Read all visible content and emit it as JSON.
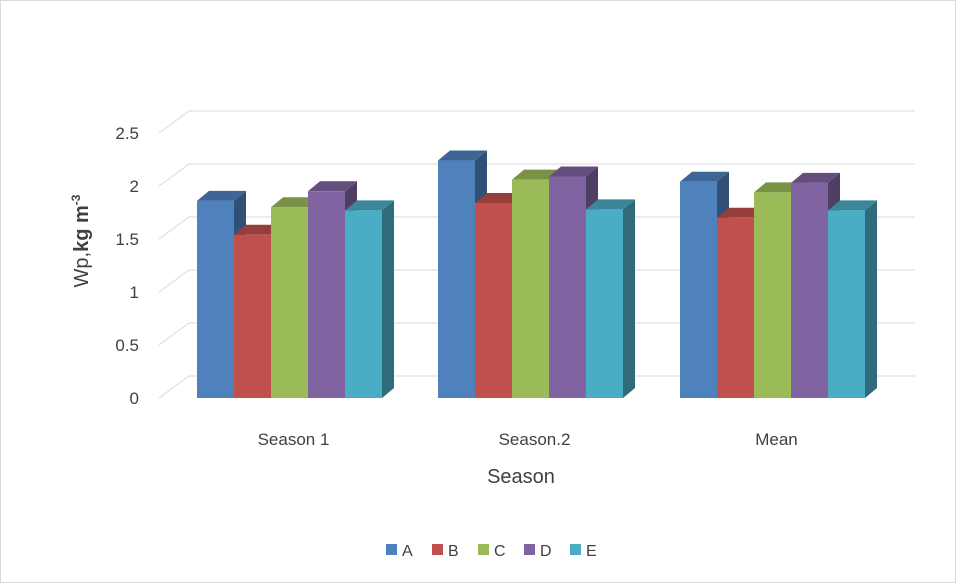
{
  "chart_data": {
    "type": "bar",
    "style": "3d-clustered-column",
    "categories": [
      "Season 1",
      "Season.2",
      "Mean"
    ],
    "series": [
      {
        "name": "A",
        "color": "#4F81BD",
        "values": [
          1.86,
          2.24,
          2.04
        ]
      },
      {
        "name": "B",
        "color": "#C0504D",
        "values": [
          1.54,
          1.84,
          1.7
        ]
      },
      {
        "name": "C",
        "color": "#9BBB59",
        "values": [
          1.8,
          2.06,
          1.94
        ]
      },
      {
        "name": "D",
        "color": "#8064A2",
        "values": [
          1.95,
          2.09,
          2.03
        ]
      },
      {
        "name": "E",
        "color": "#4BACC6",
        "values": [
          1.77,
          1.78,
          1.77
        ]
      }
    ],
    "xlabel": "Season",
    "ylabel_main": "Wp,",
    "ylabel_unit": "kg m",
    "ylabel_sup": "-3",
    "ylim": [
      0,
      2.5
    ],
    "yticks": [
      "0",
      "0.5",
      "1",
      "1.5",
      "2",
      "2.5"
    ],
    "grid": true,
    "legend_position": "bottom"
  }
}
